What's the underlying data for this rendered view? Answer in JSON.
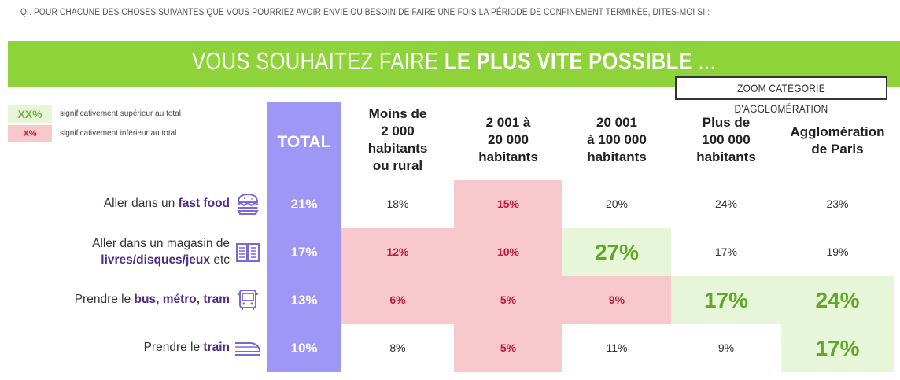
{
  "question": "QI. POUR CHACUNE DES CHOSES SUIVANTES QUE VOUS POURRIEZ AVOIR ENVIE OU BESOIN DE FAIRE UNE FOIS LA PÉRIODE DE CONFINEMENT TERMINÉE, DITES-MOI SI :",
  "banner": {
    "part1": "VOUS SOUHAITEZ FAIRE ",
    "part2": "LE PLUS VITE POSSIBLE",
    "part3": " ..."
  },
  "zoom_label": "ZOOM CATÉGORIE D'AGGLOMÉRATION",
  "legend": {
    "up_box": "XX%",
    "up_text": "significativement supérieur au total",
    "down_box": "X%",
    "down_text": "significativement inférieur au total"
  },
  "colors": {
    "banner": "#8ed33a",
    "total_column": "#9f97f5",
    "above_total_bg": "#e7f5d8",
    "above_total_text": "#5fa828",
    "below_total_bg": "#f7c8cc",
    "below_total_text": "#c2183a",
    "highlight_text": "#4e2c8c"
  },
  "chart_data": {
    "type": "table",
    "columns": [
      [
        "TOTAL"
      ],
      [
        "Moins de",
        "2 000",
        "habitants",
        "ou rural"
      ],
      [
        "2 001 à",
        "20 000",
        "habitants"
      ],
      [
        "20 001",
        "à 100 000",
        "habitants"
      ],
      [
        "Plus de",
        "100 000",
        "habitants"
      ],
      [
        "Agglomération",
        "de Paris"
      ]
    ],
    "rows": [
      {
        "label_pre": "Aller dans un ",
        "label_bold": "fast food",
        "label_post": "",
        "label_line1": "",
        "icon": "burger-icon",
        "values": [
          "21%",
          "18%",
          "15%",
          "20%",
          "24%",
          "23%"
        ],
        "sig": [
          "",
          "",
          "down",
          "",
          "",
          ""
        ]
      },
      {
        "label_pre": "",
        "label_bold": "livres/disques/jeux",
        "label_post": " etc",
        "label_line1": "Aller dans un magasin de",
        "icon": "book-icon",
        "values": [
          "17%",
          "12%",
          "10%",
          "27%",
          "17%",
          "19%"
        ],
        "sig": [
          "",
          "down",
          "down",
          "up",
          "",
          ""
        ]
      },
      {
        "label_pre": "Prendre le ",
        "label_bold": "bus, métro, tram",
        "label_post": "",
        "label_line1": "",
        "icon": "bus-icon",
        "values": [
          "13%",
          "6%",
          "5%",
          "9%",
          "17%",
          "24%"
        ],
        "sig": [
          "",
          "down",
          "down",
          "down",
          "up",
          "up"
        ]
      },
      {
        "label_pre": "Prendre le ",
        "label_bold": "train",
        "label_post": "",
        "label_line1": "",
        "icon": "train-icon",
        "values": [
          "10%",
          "8%",
          "5%",
          "11%",
          "9%",
          "17%"
        ],
        "sig": [
          "",
          "",
          "down",
          "",
          "",
          "up"
        ]
      }
    ]
  }
}
